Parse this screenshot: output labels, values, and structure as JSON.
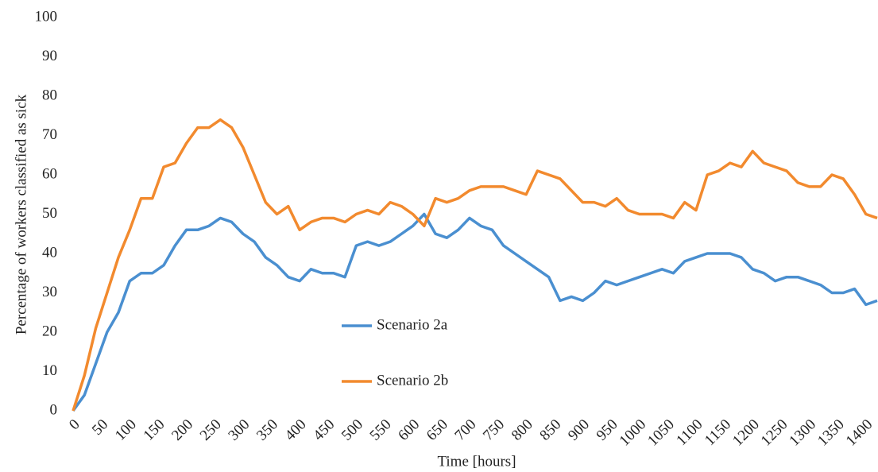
{
  "chart_data": {
    "type": "line",
    "x_label": "Time [hours]",
    "y_label": "Percentage of workers classified  as sick",
    "x": [
      0,
      20,
      40,
      60,
      80,
      100,
      120,
      140,
      160,
      180,
      200,
      220,
      240,
      260,
      280,
      300,
      320,
      340,
      360,
      380,
      400,
      420,
      440,
      460,
      480,
      500,
      520,
      540,
      560,
      580,
      600,
      620,
      640,
      660,
      680,
      700,
      720,
      740,
      760,
      780,
      800,
      820,
      840,
      860,
      880,
      900,
      920,
      940,
      960,
      980,
      1000,
      1020,
      1040,
      1060,
      1080,
      1100,
      1120,
      1140,
      1160,
      1180,
      1200,
      1220,
      1240,
      1260,
      1280,
      1300,
      1320,
      1340,
      1360,
      1380,
      1400,
      1420
    ],
    "series": [
      {
        "name": "Scenario 2a",
        "color": "#4a8fd0",
        "values": [
          0,
          4,
          12,
          20,
          25,
          33,
          35,
          35,
          37,
          42,
          46,
          46,
          47,
          49,
          48,
          45,
          43,
          39,
          37,
          34,
          33,
          36,
          35,
          35,
          34,
          42,
          43,
          42,
          43,
          45,
          47,
          50,
          45,
          44,
          46,
          49,
          47,
          46,
          42,
          40,
          38,
          36,
          34,
          28,
          29,
          28,
          30,
          33,
          32,
          33,
          34,
          35,
          36,
          35,
          38,
          39,
          40,
          40,
          40,
          39,
          36,
          35,
          33,
          34,
          34,
          33,
          32,
          30,
          30,
          31,
          27,
          28
        ]
      },
      {
        "name": "Scenario 2b",
        "color": "#f28a2e",
        "values": [
          0,
          9,
          21,
          30,
          39,
          46,
          54,
          54,
          62,
          63,
          68,
          72,
          72,
          74,
          72,
          67,
          60,
          53,
          50,
          52,
          46,
          48,
          49,
          49,
          48,
          50,
          51,
          50,
          53,
          52,
          50,
          47,
          54,
          53,
          54,
          56,
          57,
          57,
          57,
          56,
          55,
          61,
          60,
          59,
          56,
          53,
          53,
          52,
          54,
          51,
          50,
          50,
          50,
          49,
          53,
          51,
          60,
          61,
          63,
          62,
          66,
          63,
          62,
          61,
          58,
          57,
          57,
          60,
          59,
          55,
          50,
          49
        ]
      }
    ],
    "xlim": [
      0,
      1420
    ],
    "xticks": [
      0,
      50,
      100,
      150,
      200,
      250,
      300,
      350,
      400,
      450,
      500,
      550,
      600,
      650,
      700,
      750,
      800,
      850,
      900,
      950,
      1000,
      1050,
      1100,
      1150,
      1200,
      1250,
      1300,
      1350,
      1400
    ],
    "ylim": [
      0,
      100
    ],
    "yticks": [
      0,
      10,
      20,
      30,
      40,
      50,
      60,
      70,
      80,
      90,
      100
    ],
    "grid": false,
    "legend": "center"
  }
}
